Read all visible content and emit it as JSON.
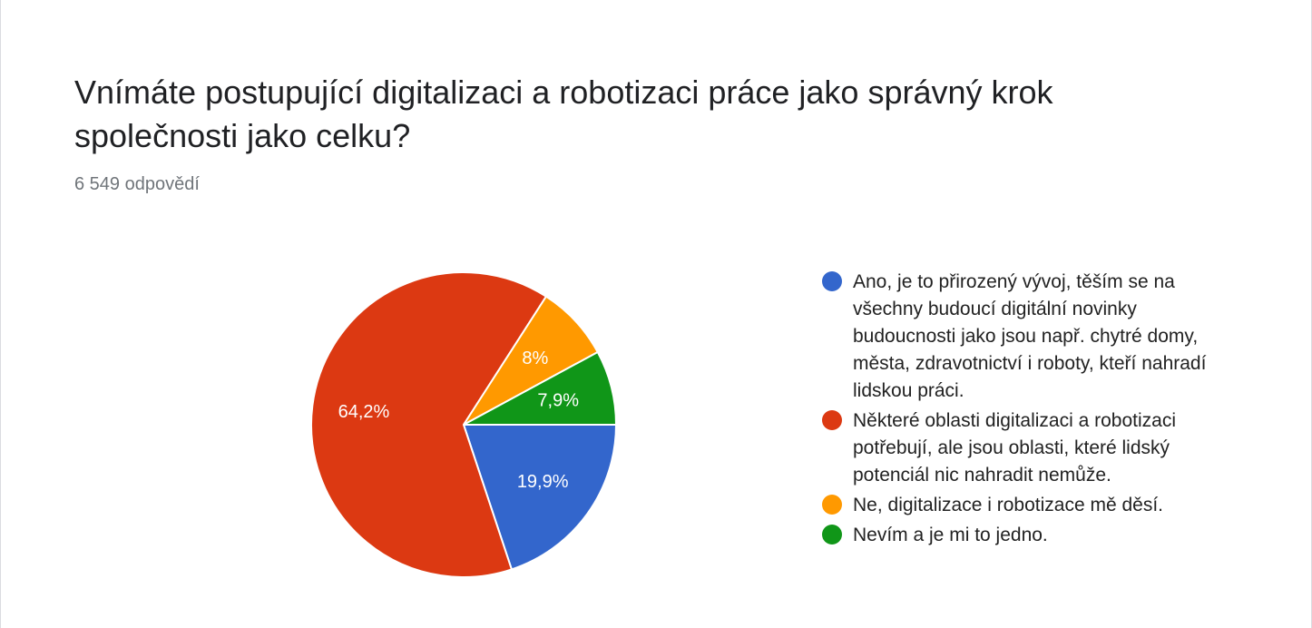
{
  "question": {
    "title": "Vnímáte postupující digitalizaci a robotizaci práce jako správný krok společnosti jako celku?",
    "response_count": "6 549 odpovědí"
  },
  "chart_data": {
    "type": "pie",
    "slices": [
      {
        "label": "Ano, je to přirozený vývoj, těším se na všechny budoucí digitální novinky budoucnosti jako jsou např. chytré domy, města, zdravotnictví i roboty, kteří nahradí lidskou práci.",
        "value": 19.9,
        "display": "19,9%",
        "color": "#3366cc"
      },
      {
        "label": "Některé oblasti digitalizaci a robotizaci potřebují, ale jsou oblasti, které lidský potenciál nic nahradit nemůže.",
        "value": 64.2,
        "display": "64,2%",
        "color": "#dc3912"
      },
      {
        "label": "Ne, digitalizace i robotizace mě děsí.",
        "value": 8.0,
        "display": "8%",
        "color": "#ff9900"
      },
      {
        "label": "Nevím a je mi to jedno.",
        "value": 7.9,
        "display": "7,9%",
        "color": "#109618"
      }
    ],
    "start_angle": "3 o'clock",
    "direction": "clockwise",
    "legend_position": "right"
  }
}
